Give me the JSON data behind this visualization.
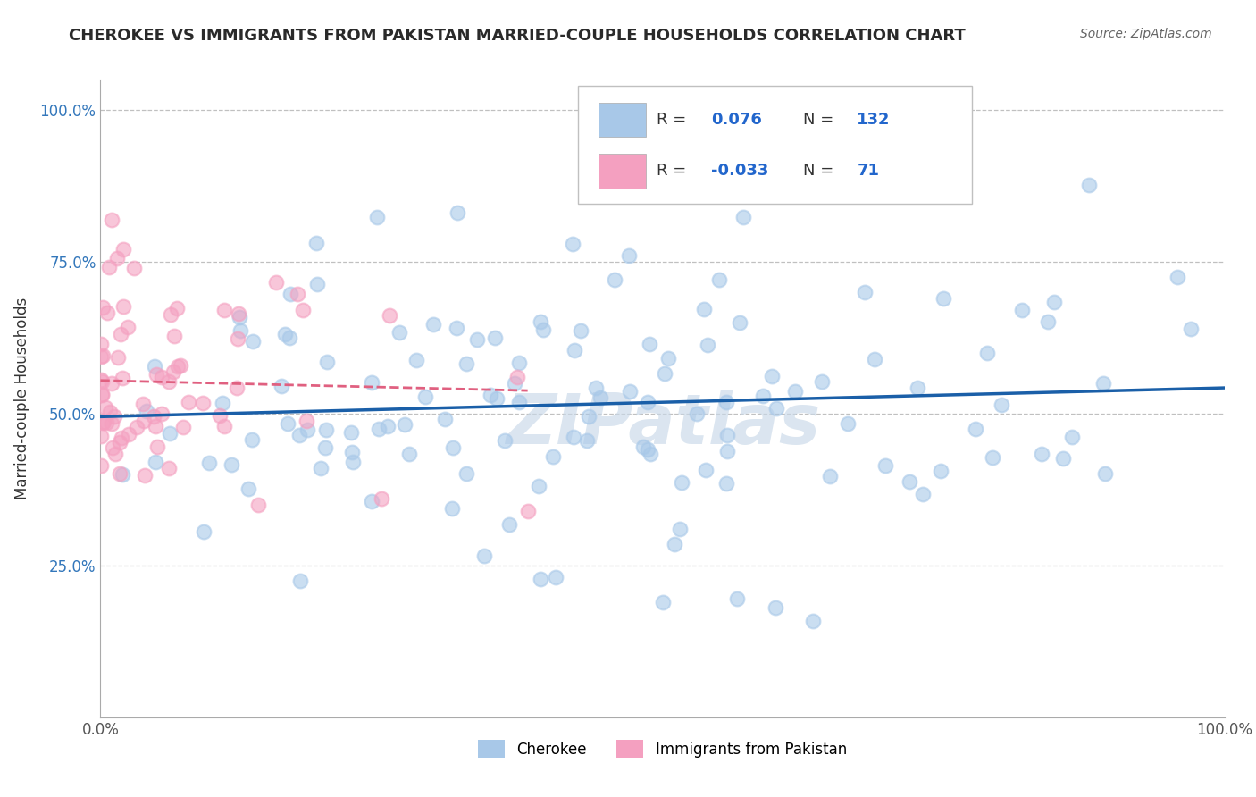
{
  "title": "CHEROKEE VS IMMIGRANTS FROM PAKISTAN MARRIED-COUPLE HOUSEHOLDS CORRELATION CHART",
  "source": "Source: ZipAtlas.com",
  "ylabel": "Married-couple Households",
  "xlim": [
    0.0,
    1.0
  ],
  "ylim": [
    0.0,
    1.05
  ],
  "ytick_positions": [
    0.25,
    0.5,
    0.75,
    1.0
  ],
  "ytick_labels": [
    "25.0%",
    "50.0%",
    "75.0%",
    "100.0%"
  ],
  "xtick_positions": [
    0.0,
    1.0
  ],
  "xtick_labels": [
    "0.0%",
    "100.0%"
  ],
  "cherokee_color": "#a8c8e8",
  "pakistan_color": "#f4a0c0",
  "cherokee_line_color": "#1a5fa8",
  "pakistan_line_color": "#e06080",
  "cherokee_R": 0.076,
  "cherokee_N": 132,
  "pakistan_R": -0.033,
  "pakistan_N": 71,
  "background_color": "#ffffff",
  "grid_color": "#c0c0c0",
  "title_fontsize": 13,
  "axis_label_fontsize": 12,
  "tick_fontsize": 12,
  "watermark_text": "ZIPatlas",
  "watermark_color": "#c8d8e8",
  "legend_items": [
    "Cherokee",
    "Immigrants from Pakistan"
  ]
}
